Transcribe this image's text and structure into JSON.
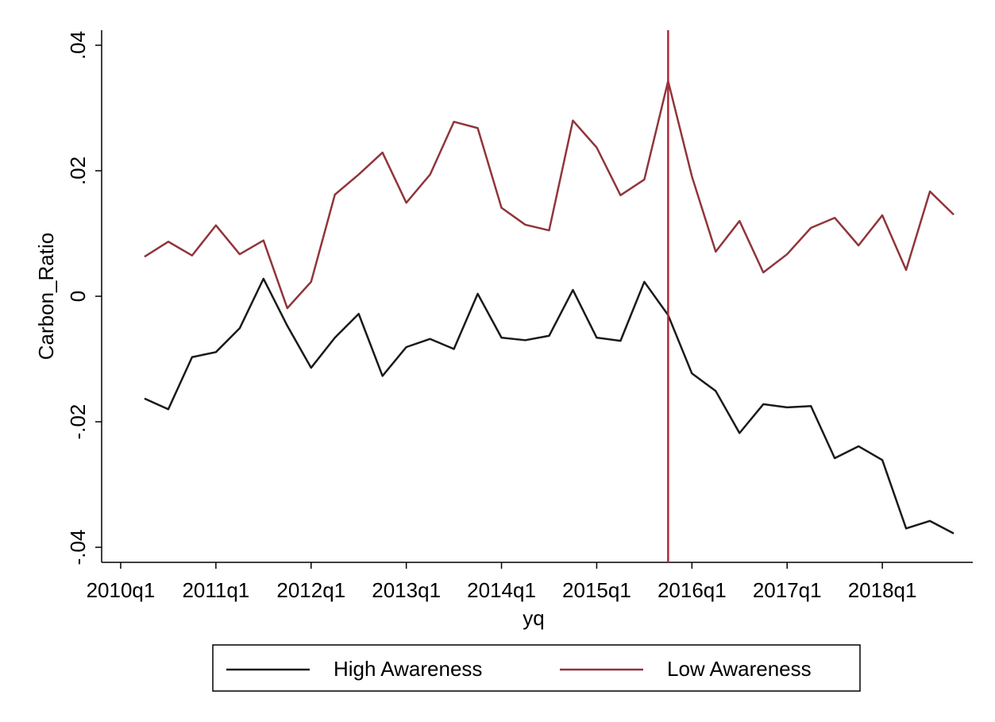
{
  "chart_data": {
    "type": "line",
    "xlabel": "yq",
    "ylabel": "Carbon_Ratio",
    "x": [
      201,
      202,
      203,
      204,
      205,
      206,
      207,
      208,
      209,
      210,
      211,
      212,
      213,
      214,
      215,
      216,
      217,
      218,
      219,
      220,
      221,
      222,
      223,
      224,
      225,
      226,
      227,
      228,
      229,
      230,
      231,
      232,
      233,
      234,
      235
    ],
    "xlim": [
      199.2,
      235.8
    ],
    "xticks": [
      {
        "value": 200,
        "label": "2010q1"
      },
      {
        "value": 204,
        "label": "2011q1"
      },
      {
        "value": 208,
        "label": "2012q1"
      },
      {
        "value": 212,
        "label": "2013q1"
      },
      {
        "value": 216,
        "label": "2014q1"
      },
      {
        "value": 220,
        "label": "2015q1"
      },
      {
        "value": 224,
        "label": "2016q1"
      },
      {
        "value": 228,
        "label": "2017q1"
      },
      {
        "value": 232,
        "label": "2018q1"
      }
    ],
    "ylim": [
      -0.0424,
      0.0424
    ],
    "yticks": [
      {
        "value": -0.04,
        "label": "-.04"
      },
      {
        "value": -0.02,
        "label": "-.02"
      },
      0,
      {
        "value": 0.02,
        "label": ".02"
      },
      {
        "value": 0.04,
        "label": ".04"
      }
    ],
    "xline": 223,
    "xline_color": "#b0283a",
    "grid": false,
    "series": [
      {
        "name": "High Awareness",
        "color": "#1a1a1a",
        "values": [
          -0.0163,
          -0.018,
          -0.0097,
          -0.0089,
          -0.0051,
          0.0028,
          -0.0047,
          -0.0114,
          -0.0066,
          -0.0028,
          -0.0127,
          -0.0081,
          -0.0068,
          -0.0084,
          0.0004,
          -0.0066,
          -0.007,
          -0.0063,
          0.001,
          -0.0066,
          -0.0071,
          0.0023,
          -0.003,
          -0.0123,
          -0.0151,
          -0.0218,
          -0.0172,
          -0.0177,
          -0.0175,
          -0.0258,
          -0.0239,
          -0.0261,
          -0.037,
          -0.0358,
          -0.0378
        ]
      },
      {
        "name": "Low Awareness",
        "color": "#90353b",
        "values": [
          0.0063,
          0.0087,
          0.0065,
          0.0113,
          0.0067,
          0.0089,
          -0.0019,
          0.0023,
          0.0162,
          0.0194,
          0.0229,
          0.0149,
          0.0194,
          0.0278,
          0.0268,
          0.0141,
          0.0114,
          0.0105,
          0.028,
          0.0237,
          0.0161,
          0.0186,
          0.0343,
          0.0191,
          0.0071,
          0.012,
          0.0038,
          0.0067,
          0.0109,
          0.0125,
          0.0081,
          0.0129,
          0.0042,
          0.0167,
          0.013
        ]
      }
    ]
  }
}
